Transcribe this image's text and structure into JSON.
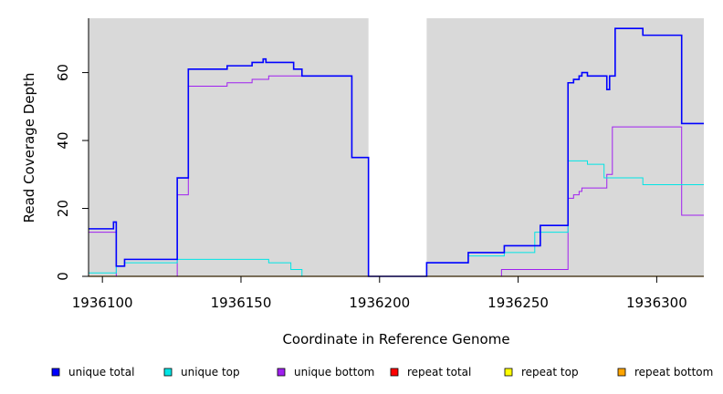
{
  "chart_data": {
    "type": "line",
    "step": true,
    "title": "",
    "xlabel": "Coordinate in Reference Genome",
    "ylabel": "Read Coverage Depth",
    "xlim": [
      1936095,
      1936317
    ],
    "ylim": [
      0,
      76
    ],
    "x_ticks": [
      1936100,
      1936150,
      1936200,
      1936250,
      1936300
    ],
    "y_ticks": [
      0,
      20,
      40,
      60
    ],
    "background_color": "#d9d9d9",
    "gap_region": [
      1936196,
      1936217
    ],
    "gap_color": "#ffffff",
    "legend_position": "bottom",
    "series": [
      {
        "name": "unique total",
        "color": "#0000ff",
        "width": 1.6,
        "points": [
          [
            1936095,
            14
          ],
          [
            1936099,
            14
          ],
          [
            1936104,
            16
          ],
          [
            1936105,
            3
          ],
          [
            1936108,
            5
          ],
          [
            1936127,
            29
          ],
          [
            1936131,
            61
          ],
          [
            1936145,
            62
          ],
          [
            1936154,
            63
          ],
          [
            1936158,
            64
          ],
          [
            1936159,
            63
          ],
          [
            1936169,
            61
          ],
          [
            1936172,
            59
          ],
          [
            1936190,
            35
          ],
          [
            1936196,
            0
          ],
          [
            1936217,
            4
          ],
          [
            1936232,
            7
          ],
          [
            1936245,
            9
          ],
          [
            1936258,
            15
          ],
          [
            1936268,
            57
          ],
          [
            1936270,
            58
          ],
          [
            1936272,
            59
          ],
          [
            1936273,
            60
          ],
          [
            1936275,
            59
          ],
          [
            1936282,
            55
          ],
          [
            1936283,
            59
          ],
          [
            1936285,
            73
          ],
          [
            1936295,
            71
          ],
          [
            1936309,
            45
          ],
          [
            1936317,
            45
          ]
        ]
      },
      {
        "name": "unique top",
        "color": "#00e5e5",
        "width": 1,
        "points": [
          [
            1936095,
            1
          ],
          [
            1936104,
            1
          ],
          [
            1936105,
            3
          ],
          [
            1936108,
            4
          ],
          [
            1936127,
            5
          ],
          [
            1936160,
            4
          ],
          [
            1936168,
            2
          ],
          [
            1936172,
            0
          ],
          [
            1936196,
            0
          ],
          [
            1936217,
            4
          ],
          [
            1936232,
            6
          ],
          [
            1936245,
            7
          ],
          [
            1936256,
            13
          ],
          [
            1936268,
            34
          ],
          [
            1936275,
            33
          ],
          [
            1936281,
            29
          ],
          [
            1936295,
            27
          ],
          [
            1936317,
            27
          ]
        ]
      },
      {
        "name": "unique bottom",
        "color": "#a020f0",
        "width": 1,
        "points": [
          [
            1936095,
            13
          ],
          [
            1936104,
            13
          ],
          [
            1936105,
            0
          ],
          [
            1936126,
            0
          ],
          [
            1936127,
            24
          ],
          [
            1936131,
            56
          ],
          [
            1936145,
            57
          ],
          [
            1936154,
            58
          ],
          [
            1936160,
            59
          ],
          [
            1936172,
            59
          ],
          [
            1936190,
            35
          ],
          [
            1936196,
            0
          ],
          [
            1936244,
            2
          ],
          [
            1936268,
            23
          ],
          [
            1936270,
            24
          ],
          [
            1936272,
            25
          ],
          [
            1936273,
            26
          ],
          [
            1936282,
            30
          ],
          [
            1936284,
            44
          ],
          [
            1936309,
            18
          ],
          [
            1936317,
            18
          ]
        ]
      },
      {
        "name": "repeat total",
        "color": "#ff0000",
        "width": 1,
        "points": [
          [
            1936095,
            0
          ],
          [
            1936317,
            0
          ]
        ]
      },
      {
        "name": "repeat top",
        "color": "#ffff00",
        "width": 1,
        "points": [
          [
            1936095,
            0
          ],
          [
            1936317,
            0
          ]
        ]
      },
      {
        "name": "repeat bottom",
        "color": "#ffa500",
        "width": 1.2,
        "points": [
          [
            1936095,
            0
          ],
          [
            1936317,
            0
          ]
        ]
      }
    ]
  }
}
